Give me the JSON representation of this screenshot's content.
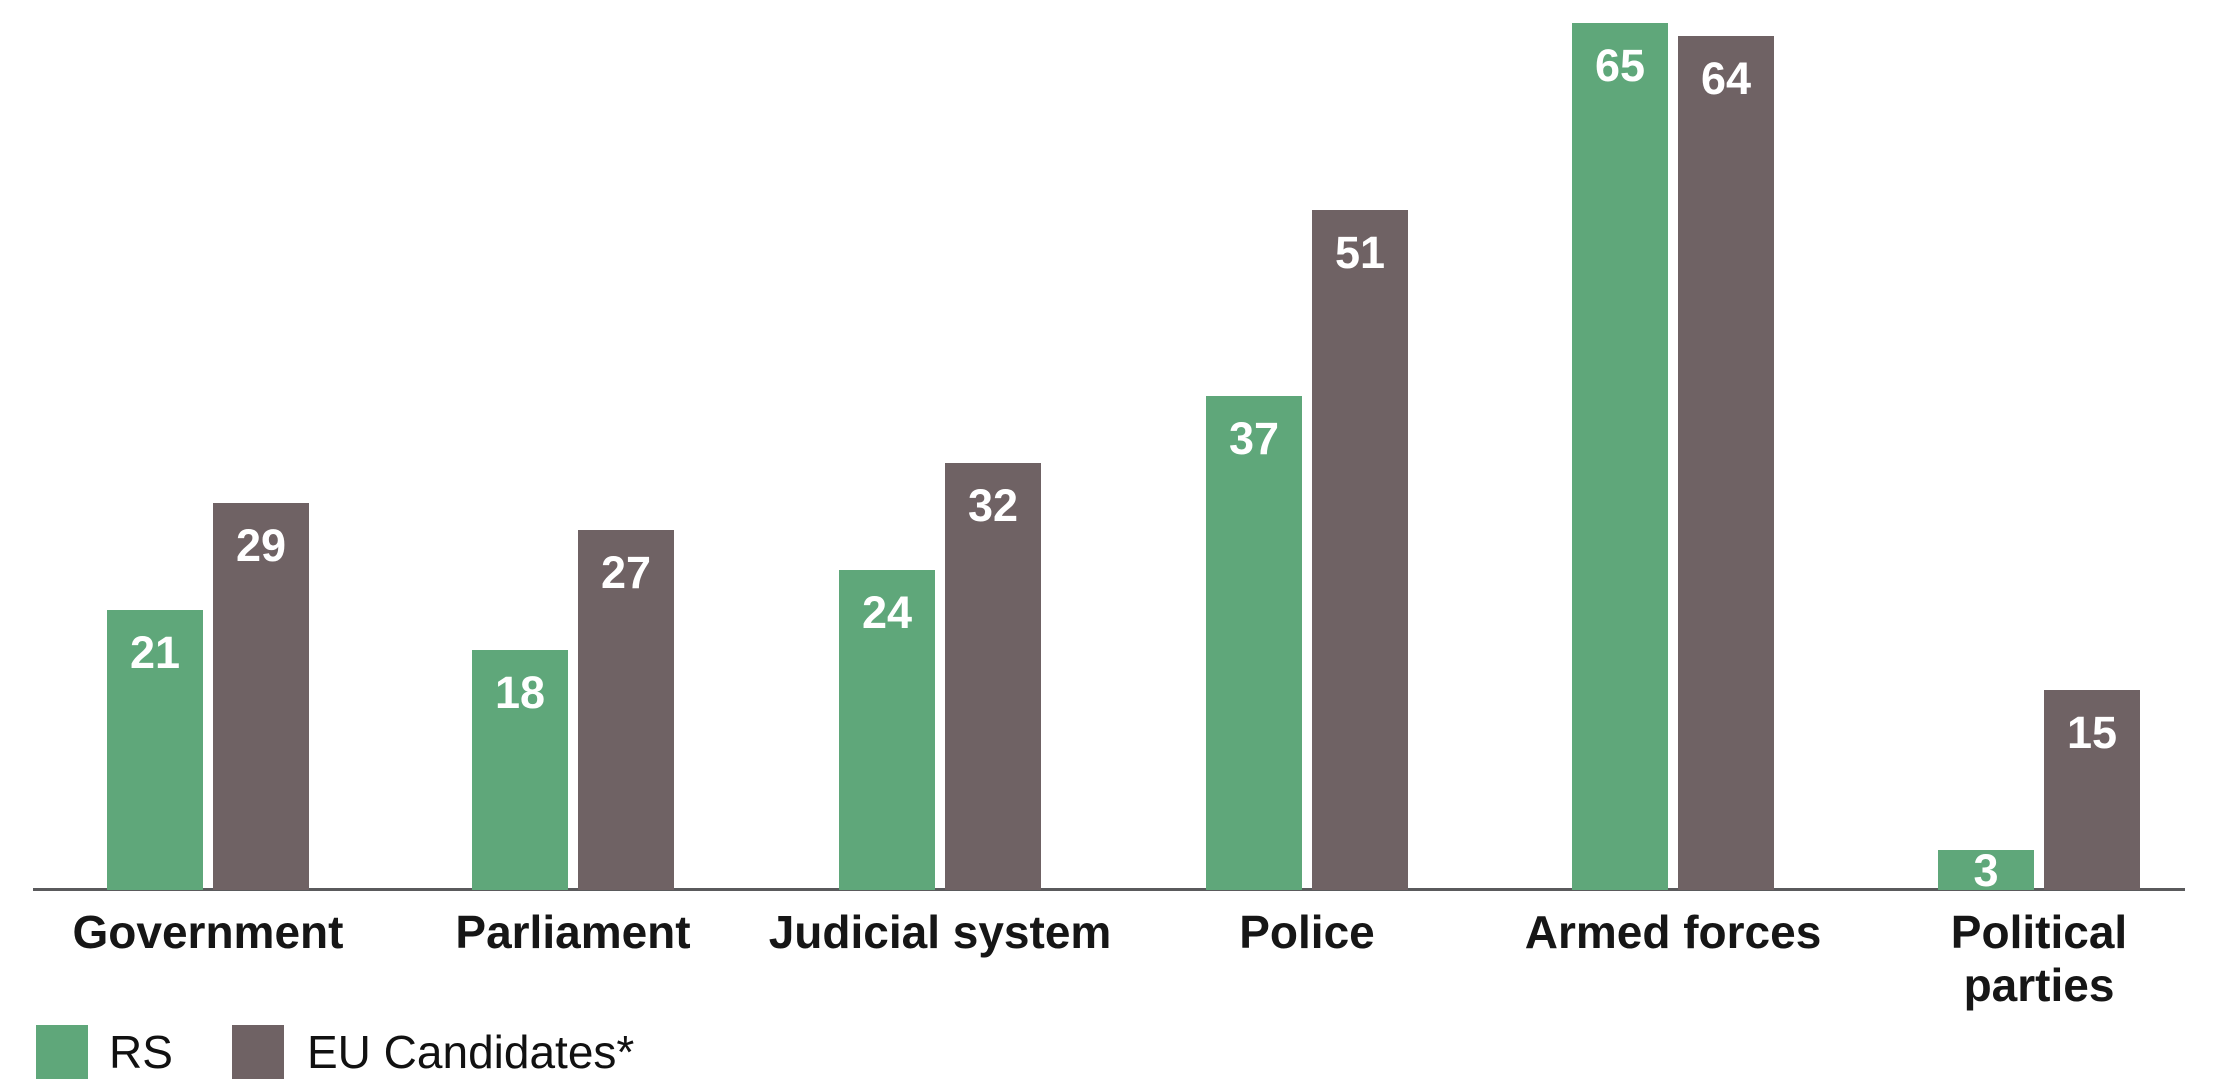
{
  "chart_data": {
    "type": "bar",
    "title": "",
    "xlabel": "",
    "ylabel": "",
    "categories": [
      "Government",
      "Parliament",
      "Judicial system",
      "Police",
      "Armed forces",
      "Political parties"
    ],
    "series": [
      {
        "name": "RS",
        "color": "#5FA77A",
        "values": [
          21,
          18,
          24,
          37,
          65,
          3
        ]
      },
      {
        "name": "EU Candidates*",
        "color": "#6F6264",
        "values": [
          29,
          27,
          32,
          51,
          64,
          15
        ]
      }
    ],
    "ylim": [
      0,
      66
    ],
    "grid": false,
    "value_labels_position": "inside-top",
    "value_label_color": "#FFFFFF",
    "legend_position": "bottom-left",
    "axis_line_color": "#5A5A5C",
    "category_label_color": "#161616",
    "background": "#FFFFFF"
  },
  "legend": {
    "items": [
      {
        "label": "RS",
        "color": "#5FA77A"
      },
      {
        "label": "EU Candidates*",
        "color": "#6F6264"
      }
    ]
  }
}
